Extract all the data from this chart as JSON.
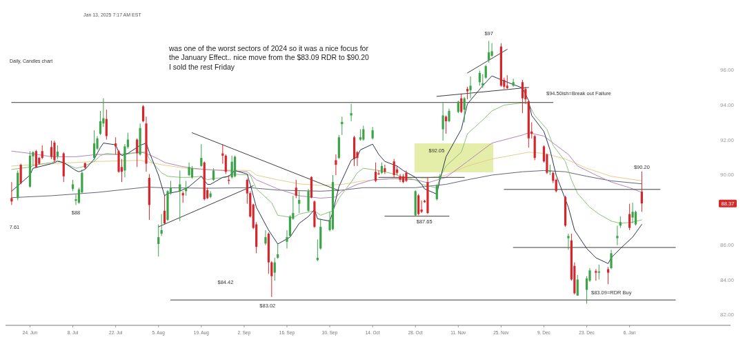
{
  "chart_data": {
    "type": "candlestick",
    "title": "Daily, Candles chart",
    "subtitle": "Jan 13, 2025 7:17 AM EST",
    "x": [
      "2024-06-18",
      "2024-06-20",
      "2024-06-21",
      "2024-06-24",
      "2024-06-25",
      "2024-06-26",
      "2024-06-27",
      "2024-06-28",
      "2024-07-01",
      "2024-07-02",
      "2024-07-03",
      "2024-07-05",
      "2024-07-08",
      "2024-07-09",
      "2024-07-10",
      "2024-07-11",
      "2024-07-12",
      "2024-07-15",
      "2024-07-16",
      "2024-07-17",
      "2024-07-18",
      "2024-07-19",
      "2024-07-22",
      "2024-07-23",
      "2024-07-24",
      "2024-07-25",
      "2024-07-26",
      "2024-07-29",
      "2024-07-30",
      "2024-07-31",
      "2024-08-01",
      "2024-08-02",
      "2024-08-05",
      "2024-08-06",
      "2024-08-07",
      "2024-08-08",
      "2024-08-09",
      "2024-08-12",
      "2024-08-13",
      "2024-08-14",
      "2024-08-15",
      "2024-08-16",
      "2024-08-19",
      "2024-08-20",
      "2024-08-21",
      "2024-08-22",
      "2024-08-23",
      "2024-08-26",
      "2024-08-27",
      "2024-08-28",
      "2024-08-29",
      "2024-08-30",
      "2024-09-03",
      "2024-09-04",
      "2024-09-05",
      "2024-09-06",
      "2024-09-09",
      "2024-09-10",
      "2024-09-11",
      "2024-09-12",
      "2024-09-13",
      "2024-09-16",
      "2024-09-17",
      "2024-09-18",
      "2024-09-19",
      "2024-09-20",
      "2024-09-23",
      "2024-09-24",
      "2024-09-25",
      "2024-09-26",
      "2024-09-27",
      "2024-09-30",
      "2024-10-01",
      "2024-10-02",
      "2024-10-03",
      "2024-10-04",
      "2024-10-07",
      "2024-10-08",
      "2024-10-09",
      "2024-10-10",
      "2024-10-11",
      "2024-10-14",
      "2024-10-15",
      "2024-10-16",
      "2024-10-17",
      "2024-10-18",
      "2024-10-21",
      "2024-10-22",
      "2024-10-23",
      "2024-10-24",
      "2024-10-25",
      "2024-10-28",
      "2024-10-29",
      "2024-10-30",
      "2024-10-31",
      "2024-11-01",
      "2024-11-04",
      "2024-11-05",
      "2024-11-06",
      "2024-11-07",
      "2024-11-08",
      "2024-11-11",
      "2024-11-12",
      "2024-11-13",
      "2024-11-14",
      "2024-11-15",
      "2024-11-18",
      "2024-11-19",
      "2024-11-20",
      "2024-11-21",
      "2024-11-22",
      "2024-11-25",
      "2024-11-26",
      "2024-11-27",
      "2024-11-29",
      "2024-12-02",
      "2024-12-03",
      "2024-12-04",
      "2024-12-05",
      "2024-12-06",
      "2024-12-09",
      "2024-12-10",
      "2024-12-11",
      "2024-12-12",
      "2024-12-13",
      "2024-12-16",
      "2024-12-17",
      "2024-12-18",
      "2024-12-19",
      "2024-12-20",
      "2024-12-23",
      "2024-12-24",
      "2024-12-26",
      "2024-12-27",
      "2024-12-30",
      "2024-12-31",
      "2025-01-02",
      "2025-01-03",
      "2025-01-06",
      "2025-01-07",
      "2025-01-08",
      "2025-01-10"
    ],
    "ohlc": [
      [
        88.67,
        89.59,
        88.28,
        88.48
      ],
      [
        88.67,
        90.25,
        88.54,
        90.12
      ],
      [
        90.58,
        90.64,
        89.46,
        89.53
      ],
      [
        89.33,
        91.36,
        89.27,
        91.1
      ],
      [
        91.06,
        91.36,
        90.51,
        91.3
      ],
      [
        91.36,
        91.43,
        90.38,
        90.45
      ],
      [
        90.97,
        91.04,
        90.58,
        90.64
      ],
      [
        91.36,
        91.69,
        90.91,
        90.97
      ],
      [
        91.59,
        91.96,
        90.91,
        91.04
      ],
      [
        91.85,
        91.96,
        90.71,
        90.84
      ],
      [
        91.06,
        91.69,
        90.91,
        91.33
      ],
      [
        91.23,
        91.3,
        89.59,
        89.92
      ],
      [
        89.2,
        89.72,
        89.07,
        89.46
      ],
      [
        88.52,
        88.87,
        88.28,
        88.61
      ],
      [
        88.41,
        89.27,
        88.35,
        89.17
      ],
      [
        89.0,
        90.31,
        88.94,
        90.12
      ],
      [
        90.67,
        90.71,
        90.35,
        90.41
      ],
      [
        90.97,
        92.55,
        90.84,
        91.8
      ],
      [
        91.5,
        92.22,
        91.43,
        92.09
      ],
      [
        92.35,
        93.66,
        92.28,
        93.07
      ],
      [
        92.94,
        94.38,
        92.74,
        93.24
      ],
      [
        93.2,
        93.73,
        92.02,
        92.22
      ],
      [
        91.8,
        92.15,
        91.17,
        91.63
      ],
      [
        91.36,
        91.43,
        90.12,
        90.18
      ],
      [
        90.45,
        90.91,
        89.59,
        90.18
      ],
      [
        90.25,
        91.76,
        89.86,
        91.63
      ],
      [
        91.59,
        92.41,
        91.5,
        92.02
      ],
      [
        92.02,
        92.09,
        90.45,
        91.23
      ],
      [
        91.17,
        92.94,
        91.1,
        92.68
      ],
      [
        93.92,
        93.99,
        93.01,
        93.07
      ],
      [
        92.94,
        93.33,
        90.18,
        90.64
      ],
      [
        89.83,
        90.05,
        87.43,
        88.28
      ],
      [
        86.05,
        87.17,
        85.33,
        86.44
      ],
      [
        86.64,
        87.76,
        86.51,
        86.84
      ],
      [
        87.95,
        88.81,
        87.17,
        87.23
      ],
      [
        87.43,
        89.13,
        87.36,
        89.07
      ],
      [
        88.94,
        89.66,
        88.87,
        89.27
      ],
      [
        89.07,
        90.25,
        87.36,
        89.46
      ],
      [
        88.96,
        89.07,
        88.41,
        88.83
      ],
      [
        89.07,
        89.66,
        88.81,
        89.27
      ],
      [
        89.99,
        90.71,
        89.92,
        90.45
      ],
      [
        89.86,
        90.51,
        89.79,
        90.38
      ],
      [
        90.51,
        91.76,
        90.45,
        90.97
      ],
      [
        90.71,
        90.77,
        88.54,
        88.61
      ],
      [
        89.13,
        89.27,
        88.61,
        88.67
      ],
      [
        88.74,
        89.07,
        88.67,
        88.94
      ],
      [
        89.72,
        90.38,
        89.66,
        90.25
      ],
      [
        91.23,
        91.76,
        90.64,
        91.1
      ],
      [
        91.1,
        91.17,
        90.05,
        90.18
      ],
      [
        89.72,
        89.99,
        89.46,
        89.66
      ],
      [
        89.86,
        91.1,
        89.79,
        90.75
      ],
      [
        89.92,
        91.1,
        89.86,
        91.04
      ],
      [
        89.72,
        89.79,
        88.35,
        88.94
      ],
      [
        88.96,
        89.07,
        87.56,
        87.62
      ],
      [
        88.31,
        88.35,
        86.9,
        86.97
      ],
      [
        87.17,
        87.3,
        85.52,
        85.89
      ],
      [
        86.08,
        86.84,
        85.98,
        86.44
      ],
      [
        86.64,
        86.71,
        84.34,
        85.0
      ],
      [
        85.0,
        85.07,
        83.02,
        84.21
      ],
      [
        84.41,
        85.26,
        83.95,
        85.0
      ],
      [
        85.26,
        86.05,
        85.2,
        85.46
      ],
      [
        86.18,
        86.84,
        85.79,
        86.44
      ],
      [
        86.51,
        87.69,
        86.44,
        87.62
      ],
      [
        87.49,
        88.81,
        87.43,
        87.82
      ],
      [
        89.27,
        89.72,
        88.67,
        88.81
      ],
      [
        88.35,
        89.07,
        87.82,
        88.57
      ],
      [
        87.95,
        89.2,
        87.89,
        89.07
      ],
      [
        89.88,
        89.92,
        88.67,
        88.7
      ],
      [
        88.48,
        88.54,
        86.97,
        87.03
      ],
      [
        85.13,
        86.31,
        85.07,
        85.26
      ],
      [
        85.79,
        87.49,
        85.72,
        87.03
      ],
      [
        86.84,
        87.89,
        86.77,
        87.43
      ],
      [
        86.9,
        89.99,
        86.84,
        89.59
      ],
      [
        90.84,
        91.17,
        89.99,
        90.58
      ],
      [
        90.97,
        92.28,
        90.91,
        92.15
      ],
      [
        92.9,
        93.33,
        92.28,
        93.03
      ],
      [
        93.4,
        94.06,
        93.07,
        93.53
      ],
      [
        92.15,
        92.24,
        90.51,
        90.91
      ],
      [
        91.3,
        91.36,
        90.51,
        90.97
      ],
      [
        92.02,
        92.61,
        91.96,
        92.15
      ],
      [
        92.02,
        92.81,
        91.96,
        92.61
      ],
      [
        92.09,
        92.74,
        92.02,
        92.55
      ],
      [
        90.18,
        90.71,
        89.59,
        89.66
      ],
      [
        90.09,
        90.25,
        89.99,
        90.04
      ],
      [
        90.12,
        90.71,
        90.05,
        90.51
      ],
      [
        90.38,
        90.58,
        90.05,
        90.18
      ],
      [
        90.77,
        90.91,
        89.86,
        89.99
      ],
      [
        90.31,
        90.51,
        89.99,
        90.12
      ],
      [
        89.92,
        90.05,
        89.59,
        89.72
      ],
      [
        89.92,
        90.05,
        89.53,
        89.59
      ],
      [
        90.12,
        90.25,
        89.59,
        89.66
      ],
      [
        87.69,
        89.13,
        87.65,
        89.07
      ],
      [
        88.83,
        88.91,
        87.69,
        87.76
      ],
      [
        88.02,
        88.54,
        87.82,
        87.89
      ],
      [
        88.52,
        88.57,
        88.41,
        88.44
      ],
      [
        89.59,
        89.86,
        87.76,
        87.82
      ],
      [
        88.61,
        89.46,
        88.54,
        89.4
      ],
      [
        89.79,
        90.05,
        89.72,
        89.92
      ],
      [
        92.61,
        94.12,
        91.96,
        93.4
      ],
      [
        93.33,
        93.4,
        92.35,
        93.07
      ],
      [
        93.07,
        93.79,
        93.01,
        93.66
      ],
      [
        93.6,
        94.25,
        93.53,
        94.19
      ],
      [
        94.38,
        94.65,
        93.53,
        93.6
      ],
      [
        93.73,
        94.45,
        93.01,
        94.38
      ],
      [
        94.91,
        95.04,
        94.32,
        94.78
      ],
      [
        94.84,
        95.63,
        94.38,
        95.1
      ],
      [
        95.3,
        95.96,
        95.1,
        95.83
      ],
      [
        95.1,
        95.76,
        94.97,
        95.24
      ],
      [
        95.56,
        96.29,
        95.5,
        96.22
      ],
      [
        96.55,
        97.66,
        96.42,
        97.01
      ],
      [
        96.81,
        97.53,
        96.75,
        97.07
      ],
      [
        97.34,
        97.53,
        95.04,
        95.1
      ],
      [
        95.43,
        95.56,
        94.91,
        95.04
      ],
      [
        95.1,
        95.7,
        94.91,
        94.97
      ],
      [
        95.1,
        95.5,
        95.04,
        95.3
      ],
      [
        95.3,
        95.43,
        93.53,
        94.38
      ],
      [
        94.91,
        95.04,
        94.06,
        94.32
      ],
      [
        94.21,
        94.25,
        91.56,
        92.09
      ],
      [
        92.48,
        93.01,
        92.09,
        92.35
      ],
      [
        92.22,
        92.28,
        90.84,
        90.97
      ],
      [
        91.63,
        91.69,
        90.71,
        90.77
      ],
      [
        91.17,
        91.23,
        90.05,
        90.12
      ],
      [
        90.18,
        90.58,
        89.99,
        90.25
      ],
      [
        90.12,
        90.18,
        89.53,
        89.66
      ],
      [
        89.72,
        89.79,
        89.0,
        89.07
      ],
      [
        88.74,
        88.81,
        87.03,
        87.1
      ],
      [
        86.38,
        86.64,
        85.72,
        86.51
      ],
      [
        86.25,
        86.64,
        83.95,
        84.02
      ],
      [
        84.8,
        85.0,
        83.16,
        83.23
      ],
      [
        83.1,
        84.28,
        83.09,
        84.02
      ],
      [
        83.43,
        84.21,
        82.64,
        84.08
      ],
      [
        83.95,
        84.67,
        83.88,
        84.54
      ],
      [
        84.5,
        84.61,
        83.95,
        84.41
      ],
      [
        84.41,
        84.87,
        84.02,
        84.48
      ],
      [
        84.61,
        84.74,
        83.75,
        84.41
      ],
      [
        84.67,
        85.72,
        84.61,
        85.52
      ],
      [
        86.38,
        87.1,
        85.98,
        86.51
      ],
      [
        87.1,
        87.62,
        86.97,
        87.3
      ],
      [
        87.76,
        88.35,
        86.84,
        86.97
      ],
      [
        87.56,
        88.41,
        87.23,
        87.89
      ],
      [
        87.17,
        87.95,
        87.1,
        87.89
      ],
      [
        89.04,
        90.2,
        87.89,
        88.37
      ]
    ],
    "xlim": [
      "2024-06-16",
      "2025-02-08"
    ],
    "xticks": [
      {
        "value": "2024-06-24",
        "label": "24. Jun"
      },
      {
        "value": "2024-07-08",
        "label": "8. Jul"
      },
      {
        "value": "2024-07-22",
        "label": "22. Jul"
      },
      {
        "value": "2024-08-05",
        "label": "5. Aug"
      },
      {
        "value": "2024-08-19",
        "label": "19. Aug"
      },
      {
        "value": "2024-09-02",
        "label": "2. Sep"
      },
      {
        "value": "2024-09-16",
        "label": "16. Sep"
      },
      {
        "value": "2024-09-30",
        "label": "30. Sep"
      },
      {
        "value": "2024-10-14",
        "label": "14. Oct"
      },
      {
        "value": "2024-10-28",
        "label": "28. Oct"
      },
      {
        "value": "2024-11-11",
        "label": "11. Nov"
      },
      {
        "value": "2024-11-25",
        "label": "25. Nov"
      },
      {
        "value": "2024-12-09",
        "label": "9. Dec"
      },
      {
        "value": "2024-12-23",
        "label": "23. Dec"
      },
      {
        "value": "2025-01-06",
        "label": "6. Jan"
      }
    ],
    "ylim": [
      81.4,
      100
    ],
    "yticks": [
      {
        "value": 82,
        "label": "82.00"
      },
      {
        "value": 84,
        "label": "84.00"
      },
      {
        "value": 86,
        "label": "86.00"
      },
      {
        "value": 90,
        "label": "90.00"
      },
      {
        "value": 92,
        "label": "92.00"
      },
      {
        "value": 94,
        "label": "94.00"
      },
      {
        "value": 96,
        "label": "96.00"
      }
    ],
    "series": [
      {
        "type": "line",
        "color": "#5f6675",
        "x": [
          "2024-06-18",
          "2024-07-01",
          "2024-07-16",
          "2024-08-01",
          "2024-08-06",
          "2024-08-21",
          "2024-09-04",
          "2024-09-13",
          "2024-09-27",
          "2024-10-04",
          "2024-10-11",
          "2024-10-28",
          "2024-10-31",
          "2024-11-07",
          "2024-11-14",
          "2024-11-22",
          "2024-12-02",
          "2024-12-09",
          "2024-12-16",
          "2024-12-23",
          "2024-12-31",
          "2025-01-10"
        ],
        "values": [
          88.7,
          88.81,
          89.0,
          89.3,
          89.27,
          89.24,
          89.27,
          89.13,
          89.07,
          89.13,
          89.27,
          89.27,
          89.33,
          89.46,
          89.72,
          89.99,
          90.18,
          90.25,
          90.18,
          89.92,
          89.66,
          89.49
        ]
      },
      {
        "type": "line",
        "color": "#e3cf8c",
        "x": [
          "2024-06-18",
          "2024-07-01",
          "2024-07-16",
          "2024-07-30",
          "2024-08-01",
          "2024-08-06",
          "2024-08-14",
          "2024-08-21",
          "2024-08-28",
          "2024-09-04",
          "2024-09-06",
          "2024-09-13",
          "2024-09-20",
          "2024-09-27",
          "2024-10-04",
          "2024-10-11",
          "2024-10-21",
          "2024-10-28",
          "2024-10-31",
          "2024-11-07",
          "2024-11-14",
          "2024-11-22",
          "2024-12-02",
          "2024-12-04",
          "2024-12-09",
          "2024-12-16",
          "2024-12-23",
          "2024-12-31",
          "2025-01-10"
        ],
        "values": [
          90.51,
          90.64,
          90.77,
          90.83,
          90.77,
          90.58,
          90.38,
          90.28,
          90.28,
          90.25,
          89.99,
          89.72,
          89.49,
          89.4,
          89.46,
          89.66,
          89.79,
          89.86,
          89.8,
          89.99,
          90.51,
          90.91,
          91.23,
          91.3,
          91.23,
          90.91,
          90.38,
          89.92,
          89.66
        ]
      },
      {
        "type": "line",
        "color": "#b584b8",
        "x": [
          "2024-06-18",
          "2024-06-24",
          "2024-07-01",
          "2024-07-09",
          "2024-07-16",
          "2024-07-23",
          "2024-07-30",
          "2024-08-01",
          "2024-08-05",
          "2024-08-07",
          "2024-08-12",
          "2024-08-16",
          "2024-08-21",
          "2024-08-26",
          "2024-09-03",
          "2024-09-06",
          "2024-09-13",
          "2024-09-20",
          "2024-09-27",
          "2024-10-02",
          "2024-10-04",
          "2024-10-09",
          "2024-10-14",
          "2024-10-21",
          "2024-10-28",
          "2024-11-01",
          "2024-11-07",
          "2024-11-14",
          "2024-11-22",
          "2024-12-02",
          "2024-12-04",
          "2024-12-09",
          "2024-12-12",
          "2024-12-17",
          "2024-12-20",
          "2024-12-26",
          "2024-12-31",
          "2025-01-06",
          "2025-01-10"
        ],
        "values": [
          91.36,
          91.23,
          91.04,
          91.04,
          91.17,
          91.17,
          91.3,
          91.23,
          90.91,
          90.71,
          90.51,
          90.38,
          90.31,
          90.25,
          90.18,
          89.72,
          89.2,
          88.81,
          88.67,
          88.74,
          89.07,
          89.46,
          89.72,
          89.79,
          89.72,
          89.55,
          89.86,
          90.77,
          91.82,
          92.28,
          92.41,
          92.22,
          91.82,
          91.17,
          90.51,
          89.99,
          89.59,
          89.27,
          89.0
        ]
      },
      {
        "type": "line",
        "color": "#8cc17a",
        "x": [
          "2024-06-18",
          "2024-06-24",
          "2024-06-26",
          "2024-07-01",
          "2024-07-03",
          "2024-07-09",
          "2024-07-11",
          "2024-07-15",
          "2024-07-17",
          "2024-07-19",
          "2024-07-23",
          "2024-07-25",
          "2024-07-30",
          "2024-08-01",
          "2024-08-02",
          "2024-08-06",
          "2024-08-08",
          "2024-08-12",
          "2024-08-15",
          "2024-08-19",
          "2024-08-21",
          "2024-08-23",
          "2024-08-27",
          "2024-08-29",
          "2024-09-04",
          "2024-09-06",
          "2024-09-11",
          "2024-09-13",
          "2024-09-18",
          "2024-09-20",
          "2024-09-25",
          "2024-09-27",
          "2024-10-01",
          "2024-10-03",
          "2024-10-07",
          "2024-10-09",
          "2024-10-11",
          "2024-10-16",
          "2024-10-21",
          "2024-10-23",
          "2024-10-28",
          "2024-10-30",
          "2024-11-04",
          "2024-11-05",
          "2024-11-07",
          "2024-11-12",
          "2024-11-14",
          "2024-11-19",
          "2024-11-22",
          "2024-11-26",
          "2024-12-02",
          "2024-12-04",
          "2024-12-06",
          "2024-12-10",
          "2024-12-12",
          "2024-12-16",
          "2024-12-18",
          "2024-12-20",
          "2024-12-24",
          "2024-12-27",
          "2024-12-31",
          "2025-01-03",
          "2025-01-07",
          "2025-01-10"
        ],
        "values": [
          90.31,
          90.45,
          90.58,
          90.71,
          90.84,
          90.38,
          90.45,
          90.77,
          91.1,
          91.23,
          91.17,
          91.17,
          91.3,
          91.3,
          90.91,
          90.12,
          89.92,
          89.86,
          89.86,
          89.92,
          89.72,
          89.79,
          89.86,
          90.05,
          89.99,
          89.2,
          88.41,
          87.69,
          87.56,
          87.76,
          87.95,
          87.69,
          87.95,
          88.67,
          89.59,
          90.12,
          90.38,
          90.25,
          90.05,
          89.92,
          89.72,
          89.46,
          89.25,
          89.86,
          90.51,
          91.3,
          92.35,
          93.14,
          93.66,
          93.99,
          94.12,
          94.06,
          93.4,
          92.61,
          91.69,
          90.77,
          89.72,
          88.94,
          88.15,
          87.76,
          87.36,
          87.23,
          87.3,
          87.43
        ]
      },
      {
        "type": "line",
        "color": "#2a3452",
        "x": [
          "2024-06-18",
          "2024-06-24",
          "2024-06-25",
          "2024-07-01",
          "2024-07-03",
          "2024-07-05",
          "2024-07-09",
          "2024-07-10",
          "2024-07-12",
          "2024-07-15",
          "2024-07-17",
          "2024-07-18",
          "2024-07-22",
          "2024-07-23",
          "2024-07-24",
          "2024-07-26",
          "2024-07-30",
          "2024-08-01",
          "2024-08-02",
          "2024-08-05",
          "2024-08-07",
          "2024-08-08",
          "2024-08-12",
          "2024-08-15",
          "2024-08-19",
          "2024-08-21",
          "2024-08-22",
          "2024-08-26",
          "2024-08-28",
          "2024-08-30",
          "2024-09-03",
          "2024-09-04",
          "2024-09-06",
          "2024-09-10",
          "2024-09-13",
          "2024-09-17",
          "2024-09-20",
          "2024-09-23",
          "2024-09-25",
          "2024-09-26",
          "2024-09-30",
          "2024-10-01",
          "2024-10-03",
          "2024-10-07",
          "2024-10-09",
          "2024-10-10",
          "2024-10-14",
          "2024-10-16",
          "2024-10-18",
          "2024-10-22",
          "2024-10-24",
          "2024-10-28",
          "2024-10-30",
          "2024-10-31",
          "2024-11-04",
          "2024-11-05",
          "2024-11-07",
          "2024-11-12",
          "2024-11-14",
          "2024-11-19",
          "2024-11-22",
          "2024-11-26",
          "2024-12-02",
          "2024-12-04",
          "2024-12-05",
          "2024-12-09",
          "2024-12-11",
          "2024-12-13",
          "2024-12-17",
          "2024-12-19",
          "2024-12-23",
          "2024-12-26",
          "2024-12-30",
          "2024-12-31",
          "2025-01-03",
          "2025-01-07",
          "2025-01-10"
        ],
        "values": [
          89.07,
          89.99,
          90.38,
          90.64,
          90.77,
          90.71,
          90.25,
          90.18,
          90.31,
          90.91,
          91.56,
          91.82,
          91.72,
          91.3,
          91.1,
          91.23,
          91.69,
          91.82,
          91.3,
          89.99,
          88.81,
          88.94,
          89.07,
          89.33,
          89.92,
          89.46,
          89.46,
          89.86,
          89.92,
          90.25,
          90.05,
          89.46,
          88.15,
          86.84,
          86.05,
          86.44,
          87.23,
          87.62,
          88.02,
          87.49,
          87.36,
          87.89,
          89.33,
          90.84,
          91.04,
          91.43,
          91.76,
          91.17,
          90.77,
          90.51,
          90.25,
          89.86,
          89.46,
          89.2,
          88.9,
          89.72,
          91.04,
          92.61,
          94.06,
          95.1,
          95.66,
          95.37,
          94.97,
          94.25,
          93.4,
          92.48,
          91.43,
          89.99,
          88.15,
          86.84,
          85.79,
          85.26,
          84.93,
          85.26,
          85.79,
          86.44,
          87.17
        ]
      },
      {
        "type": "line",
        "color": "#3c3c3c",
        "x": [
          "2024-06-18",
          "2024-12-12"
        ],
        "values": [
          94.14,
          94.14
        ]
      },
      {
        "type": "line",
        "color": "#3c3c3c",
        "x": [
          "2024-10-16",
          "2024-11-13"
        ],
        "values": [
          89.86,
          89.86
        ]
      },
      {
        "type": "line",
        "color": "#3c3c3c",
        "x": [
          "2024-11-26",
          "2025-01-16"
        ],
        "values": [
          89.17,
          89.17
        ]
      },
      {
        "type": "line",
        "color": "#3c3c3c",
        "x": [
          "2024-10-18",
          "2024-11-08"
        ],
        "values": [
          87.64,
          87.64
        ]
      },
      {
        "type": "line",
        "color": "#3c3c3c",
        "x": [
          "2024-11-29",
          "2025-01-21"
        ],
        "values": [
          85.85,
          85.85
        ]
      },
      {
        "type": "line",
        "color": "#3c3c3c",
        "x": [
          "2024-08-09",
          "2025-01-21"
        ],
        "values": [
          82.85,
          82.85
        ]
      },
      {
        "type": "line",
        "color": "#3c3c3c",
        "x": [
          "2024-08-16",
          "2024-10-03"
        ],
        "values": [
          92.41,
          89.1
        ]
      },
      {
        "type": "line",
        "color": "#3c3c3c",
        "x": [
          "2024-08-05",
          "2024-09-05"
        ],
        "values": [
          87.03,
          89.38
        ]
      },
      {
        "type": "line",
        "color": "#3c3c3c",
        "x": [
          "2024-11-14",
          "2024-11-27"
        ],
        "values": [
          95.83,
          97.18
        ]
      },
      {
        "type": "line",
        "color": "#3c3c3c",
        "x": [
          "2024-11-04",
          "2024-12-04"
        ],
        "values": [
          94.49,
          95.0
        ]
      }
    ],
    "annotations": [
      "was one of the worst sectors of 2024 so it was a nice focus for\nthe January Effect.. nice move from the $83.09 RDR to $90.20\nI sold the rest Friday",
      {
        "text": "$97",
        "x": "2024-11-21",
        "y": 97.66
      },
      "$92.05",
      "$94.50ish=Break out Failure",
      {
        "text": "$90.20",
        "x": "2025-01-10",
        "y": 90.2
      },
      {
        "text": "$87.65",
        "x": "2024-10-28",
        "y": 87.65
      },
      "$88",
      "7.61",
      "$84.42",
      {
        "text": "$83.02",
        "x": "2024-09-11",
        "y": 83.02
      },
      {
        "text": "$83.09=RDR Buy",
        "x": "2024-12-20",
        "y": 83.09
      },
      {
        "text": "88.37",
        "y": 88.37
      }
    ]
  }
}
